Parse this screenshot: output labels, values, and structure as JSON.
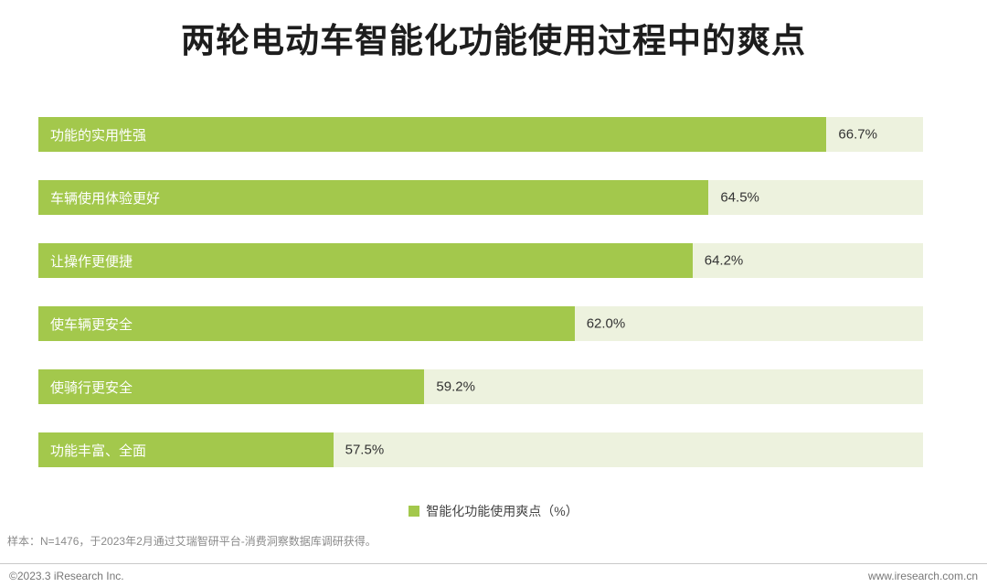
{
  "chart_data": {
    "type": "bar",
    "orientation": "horizontal",
    "title": "两轮电动车智能化功能使用过程中的爽点",
    "categories": [
      "功能的实用性强",
      "车辆使用体验更好",
      "让操作更便捷",
      "使车辆更安全",
      "使骑行更安全",
      "功能丰富、全面"
    ],
    "values": [
      66.7,
      64.5,
      64.2,
      62.0,
      59.2,
      57.5
    ],
    "value_labels": [
      "66.7%",
      "64.5%",
      "64.2%",
      "62.0%",
      "59.2%",
      "57.5%"
    ],
    "xlabel": "",
    "ylabel": "",
    "xlim": [
      52,
      68.5
    ],
    "grid": false,
    "legend": {
      "label": "智能化功能使用爽点（%）",
      "position": "bottom-center"
    },
    "colors": {
      "bar": "#a3c84c",
      "track": "#edf2de",
      "category_text": "#ffffff",
      "value_text": "#333333"
    }
  },
  "note": "样本：N=1476，于2023年2月通过艾瑞智研平台-消费洞察数据库调研获得。",
  "footer": {
    "left": "©2023.3 iResearch Inc.",
    "right": "www.iresearch.com.cn"
  }
}
